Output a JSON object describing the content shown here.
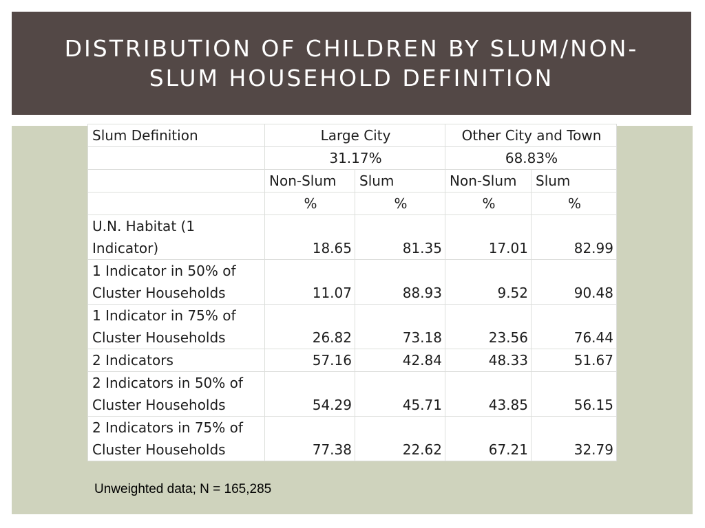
{
  "slide": {
    "title": "DISTRIBUTION OF CHILDREN BY SLUM/NON-\nSLUM HOUSEHOLD DEFINITION",
    "footnote": "Unweighted data; N = 165,285"
  },
  "colors": {
    "title_bar": "#534846",
    "content_bg": "#cfd3bd",
    "table_bg": "#ffffff",
    "title_text": "#ffffff"
  },
  "table": {
    "header": {
      "col0": "Slum Definition",
      "large_city": "Large City",
      "other_city": "Other City and Town",
      "large_city_pct": "31.17%",
      "other_city_pct": "68.83%",
      "non_slum": "Non-Slum",
      "slum": "Slum",
      "unit": "%"
    },
    "rows": [
      {
        "label1": "U.N. Habitat (1",
        "label2": "Indicator)",
        "lc_non_slum": "18.65",
        "lc_slum": "81.35",
        "oc_non_slum": "17.01",
        "oc_slum": "82.99"
      },
      {
        "label1": "1 Indicator in 50% of",
        "label2": "Cluster Households",
        "lc_non_slum": "11.07",
        "lc_slum": "88.93",
        "oc_non_slum": "9.52",
        "oc_slum": "90.48"
      },
      {
        "label1": "1 Indicator in 75% of",
        "label2": "Cluster Households",
        "lc_non_slum": "26.82",
        "lc_slum": "73.18",
        "oc_non_slum": "23.56",
        "oc_slum": "76.44"
      },
      {
        "label1": "2 Indicators",
        "label2": "",
        "lc_non_slum": "57.16",
        "lc_slum": "42.84",
        "oc_non_slum": "48.33",
        "oc_slum": "51.67"
      },
      {
        "label1": "2 Indicators in 50% of",
        "label2": "Cluster Households",
        "lc_non_slum": "54.29",
        "lc_slum": "45.71",
        "oc_non_slum": "43.85",
        "oc_slum": "56.15"
      },
      {
        "label1": "2 Indicators in 75% of",
        "label2": "Cluster Households",
        "lc_non_slum": "77.38",
        "lc_slum": "22.62",
        "oc_non_slum": "67.21",
        "oc_slum": "32.79"
      }
    ]
  }
}
